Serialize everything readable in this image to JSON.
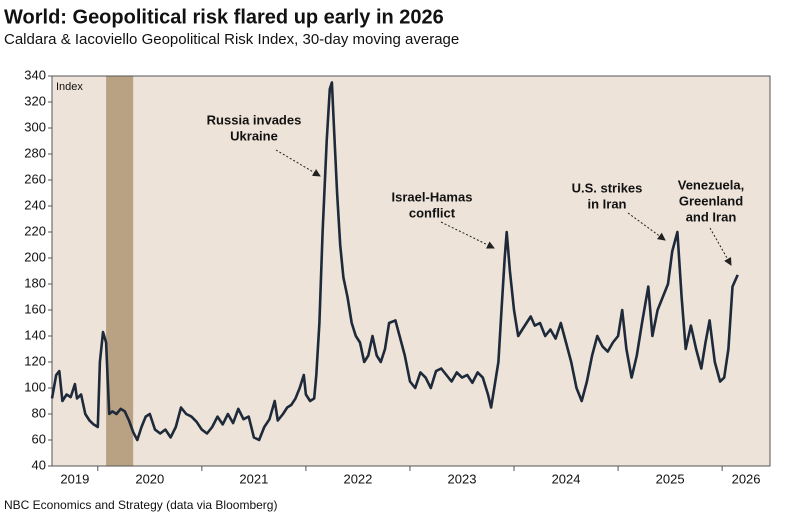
{
  "chart_data": {
    "type": "line",
    "title": "World: Geopolitical risk flared up early in 2026",
    "subtitle": "Caldara & Iacoviello Geopolitical Risk Index, 30-day moving average",
    "y_label": "Index",
    "source": "NBC Economics and Strategy (data via Bloomberg)",
    "xlim": [
      2019.56,
      2026.46
    ],
    "xticks": [
      2019,
      2020,
      2021,
      2022,
      2023,
      2024,
      2025,
      2026
    ],
    "ylim": [
      40,
      340
    ],
    "yticks": [
      40,
      60,
      80,
      100,
      120,
      140,
      160,
      180,
      200,
      220,
      240,
      260,
      280,
      300,
      320,
      340
    ],
    "grid": false,
    "shade": [
      2020.08,
      2020.34
    ],
    "shade_color": "#b9a184",
    "background": "#ede3d9",
    "annotations": [
      [
        "Russia invades",
        "Ukraine"
      ],
      [
        "Israel-Hamas",
        "conflict"
      ],
      [
        "U.S. strikes",
        "in Iran"
      ],
      [
        "Venezuela,",
        "Greenland",
        "and Iran"
      ]
    ],
    "series": [
      {
        "name": "Geopolitical Risk Index",
        "color": "#1e2a3a",
        "x": [
          2019.56,
          2019.6,
          2019.63,
          2019.66,
          2019.7,
          2019.74,
          2019.78,
          2019.8,
          2019.84,
          2019.88,
          2019.92,
          2019.96,
          2020.0,
          2020.02,
          2020.05,
          2020.08,
          2020.11,
          2020.14,
          2020.18,
          2020.22,
          2020.26,
          2020.3,
          2020.34,
          2020.38,
          2020.42,
          2020.46,
          2020.5,
          2020.55,
          2020.6,
          2020.65,
          2020.7,
          2020.75,
          2020.8,
          2020.85,
          2020.9,
          2020.95,
          2021.0,
          2021.05,
          2021.1,
          2021.15,
          2021.2,
          2021.25,
          2021.3,
          2021.35,
          2021.4,
          2021.45,
          2021.5,
          2021.55,
          2021.6,
          2021.65,
          2021.7,
          2021.73,
          2021.78,
          2021.82,
          2021.86,
          2021.9,
          2021.94,
          2021.98,
          2022.0,
          2022.04,
          2022.08,
          2022.1,
          2022.13,
          2022.16,
          2022.2,
          2022.23,
          2022.25,
          2022.27,
          2022.3,
          2022.33,
          2022.36,
          2022.4,
          2022.44,
          2022.48,
          2022.52,
          2022.56,
          2022.6,
          2022.64,
          2022.68,
          2022.72,
          2022.76,
          2022.8,
          2022.86,
          2022.9,
          2022.95,
          2023.0,
          2023.05,
          2023.1,
          2023.15,
          2023.2,
          2023.25,
          2023.3,
          2023.35,
          2023.4,
          2023.45,
          2023.5,
          2023.55,
          2023.6,
          2023.65,
          2023.7,
          2023.75,
          2023.78,
          2023.8,
          2023.85,
          2023.88,
          2023.91,
          2023.93,
          2023.96,
          2024.0,
          2024.04,
          2024.08,
          2024.12,
          2024.16,
          2024.2,
          2024.25,
          2024.3,
          2024.35,
          2024.4,
          2024.45,
          2024.5,
          2024.55,
          2024.6,
          2024.65,
          2024.7,
          2024.75,
          2024.8,
          2024.85,
          2024.9,
          2024.95,
          2025.0,
          2025.04,
          2025.08,
          2025.13,
          2025.18,
          2025.23,
          2025.29,
          2025.33,
          2025.38,
          2025.43,
          2025.48,
          2025.52,
          2025.57,
          2025.61,
          2025.65,
          2025.7,
          2025.75,
          2025.8,
          2025.84,
          2025.88,
          2025.93,
          2025.98,
          2026.02,
          2026.06,
          2026.1,
          2026.15
        ],
        "values": [
          92,
          110,
          113,
          90,
          95,
          93,
          103,
          92,
          95,
          80,
          75,
          72,
          70,
          120,
          143,
          135,
          80,
          82,
          80,
          84,
          82,
          75,
          66,
          60,
          70,
          78,
          80,
          68,
          65,
          68,
          62,
          70,
          85,
          80,
          78,
          74,
          68,
          65,
          70,
          78,
          72,
          80,
          73,
          84,
          76,
          78,
          62,
          60,
          70,
          76,
          90,
          75,
          80,
          85,
          87,
          92,
          100,
          110,
          95,
          90,
          92,
          110,
          150,
          220,
          290,
          330,
          335,
          300,
          250,
          210,
          185,
          170,
          150,
          140,
          135,
          120,
          125,
          140,
          125,
          120,
          130,
          150,
          152,
          140,
          125,
          105,
          100,
          112,
          108,
          100,
          113,
          115,
          110,
          105,
          112,
          108,
          110,
          104,
          112,
          108,
          95,
          85,
          95,
          120,
          160,
          200,
          220,
          190,
          160,
          140,
          145,
          150,
          155,
          148,
          150,
          140,
          145,
          138,
          150,
          135,
          120,
          100,
          90,
          105,
          125,
          140,
          132,
          128,
          135,
          140,
          160,
          130,
          108,
          125,
          150,
          178,
          140,
          160,
          170,
          180,
          205,
          220,
          170,
          130,
          148,
          130,
          115,
          135,
          152,
          120,
          105,
          108,
          130,
          178,
          187
        ]
      }
    ]
  }
}
